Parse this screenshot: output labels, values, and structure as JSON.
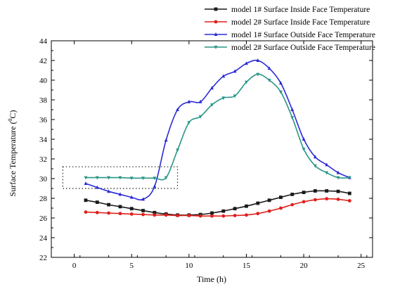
{
  "chart_data": {
    "type": "line",
    "xlabel": "Time (h)",
    "ylabel_main": "Surface Temperature (",
    "ylabel_sup": "0",
    "ylabel_tail": "C)",
    "xlim": [
      -2,
      26
    ],
    "ylim": [
      22,
      44
    ],
    "xticks": [
      0,
      5,
      10,
      15,
      20,
      25
    ],
    "yticks": [
      22,
      24,
      26,
      28,
      30,
      32,
      34,
      36,
      38,
      40,
      42,
      44
    ],
    "legend_position": "top-right",
    "highlight_box": {
      "x": [
        -1,
        9
      ],
      "y": [
        29,
        31.2
      ],
      "style": "dotted"
    },
    "series": [
      {
        "name": "model 1# Surface Inside Face Temperature",
        "color": "#1a1a1a",
        "marker": "square",
        "x": [
          1,
          2,
          3,
          4,
          5,
          6,
          7,
          8,
          9,
          10,
          11,
          12,
          13,
          14,
          15,
          16,
          17,
          18,
          19,
          20,
          21,
          22,
          23,
          24
        ],
        "values": [
          27.8,
          27.6,
          27.35,
          27.15,
          26.95,
          26.75,
          26.55,
          26.4,
          26.3,
          26.3,
          26.35,
          26.5,
          26.7,
          26.95,
          27.2,
          27.5,
          27.8,
          28.1,
          28.4,
          28.6,
          28.75,
          28.75,
          28.7,
          28.5
        ]
      },
      {
        "name": "model 2# Surface Inside Face Temperature",
        "color": "#e0201b",
        "marker": "circle",
        "x": [
          1,
          2,
          3,
          4,
          5,
          6,
          7,
          8,
          9,
          10,
          11,
          12,
          13,
          14,
          15,
          16,
          17,
          18,
          19,
          20,
          21,
          22,
          23,
          24
        ],
        "values": [
          26.6,
          26.55,
          26.5,
          26.45,
          26.4,
          26.35,
          26.3,
          26.3,
          26.25,
          26.25,
          26.2,
          26.2,
          26.2,
          26.25,
          26.3,
          26.45,
          26.7,
          27.0,
          27.35,
          27.65,
          27.85,
          27.95,
          27.9,
          27.75
        ]
      },
      {
        "name": "model 1# Surface Outside Face Temperature",
        "color": "#2a2ad6",
        "marker": "triangle-up",
        "x": [
          1,
          2,
          3,
          4,
          5,
          6,
          7,
          8,
          9,
          10,
          11,
          12,
          13,
          14,
          15,
          16,
          17,
          18,
          19,
          20,
          21,
          22,
          23,
          24
        ],
        "values": [
          29.5,
          29.1,
          28.7,
          28.4,
          28.1,
          27.9,
          29.2,
          33.9,
          37.0,
          37.8,
          37.8,
          39.2,
          40.4,
          40.9,
          41.7,
          42.0,
          41.2,
          39.7,
          37.0,
          34.0,
          32.2,
          31.4,
          30.6,
          30.1
        ]
      },
      {
        "name": "model 2# Surface Outside Face Temperature",
        "color": "#2a9688",
        "marker": "triangle-down",
        "x": [
          1,
          2,
          3,
          4,
          5,
          6,
          7,
          8,
          9,
          10,
          11,
          12,
          13,
          14,
          15,
          16,
          17,
          18,
          19,
          20,
          21,
          22,
          23,
          24
        ],
        "values": [
          30.1,
          30.1,
          30.1,
          30.1,
          30.05,
          30.05,
          30.05,
          30.1,
          32.9,
          35.7,
          36.3,
          37.5,
          38.2,
          38.4,
          39.8,
          40.6,
          40.0,
          38.8,
          36.2,
          33.0,
          31.3,
          30.6,
          30.1,
          30.1
        ]
      }
    ]
  }
}
